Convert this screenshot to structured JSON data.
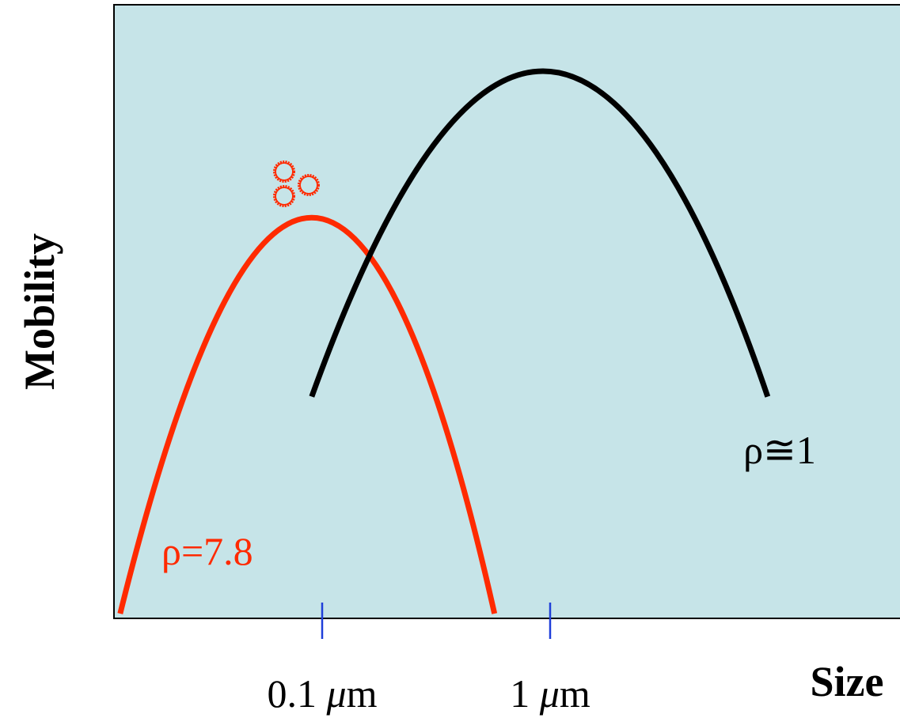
{
  "chart_data": {
    "type": "line",
    "xlabel": "Size",
    "ylabel": "Mobility",
    "x_scale": "log",
    "x_ticks": [
      {
        "value": 0.1,
        "num": "0.1",
        "unit": "μm"
      },
      {
        "value": 1,
        "num": "1",
        "unit": "μm"
      }
    ],
    "grid": false,
    "series": [
      {
        "name": "ρ=7.8",
        "color": "#ff2a00",
        "peak_x": 0.09,
        "points": [
          [
            0.013,
            0.0
          ],
          [
            0.09,
            0.73
          ],
          [
            0.57,
            0.0
          ]
        ]
      },
      {
        "name": "ρ≅1",
        "color": "#000000",
        "peak_x": 0.93,
        "points": [
          [
            0.09,
            0.4
          ],
          [
            0.93,
            1.0
          ],
          [
            9.0,
            0.4
          ]
        ]
      }
    ],
    "annotations": [
      {
        "type": "particle-cluster-icon",
        "near_series": "ρ=7.8",
        "color": "#ff2a00"
      }
    ]
  },
  "colors": {
    "plot_background": "#c6e4e8",
    "tick_marks": "#1f3fd9"
  }
}
